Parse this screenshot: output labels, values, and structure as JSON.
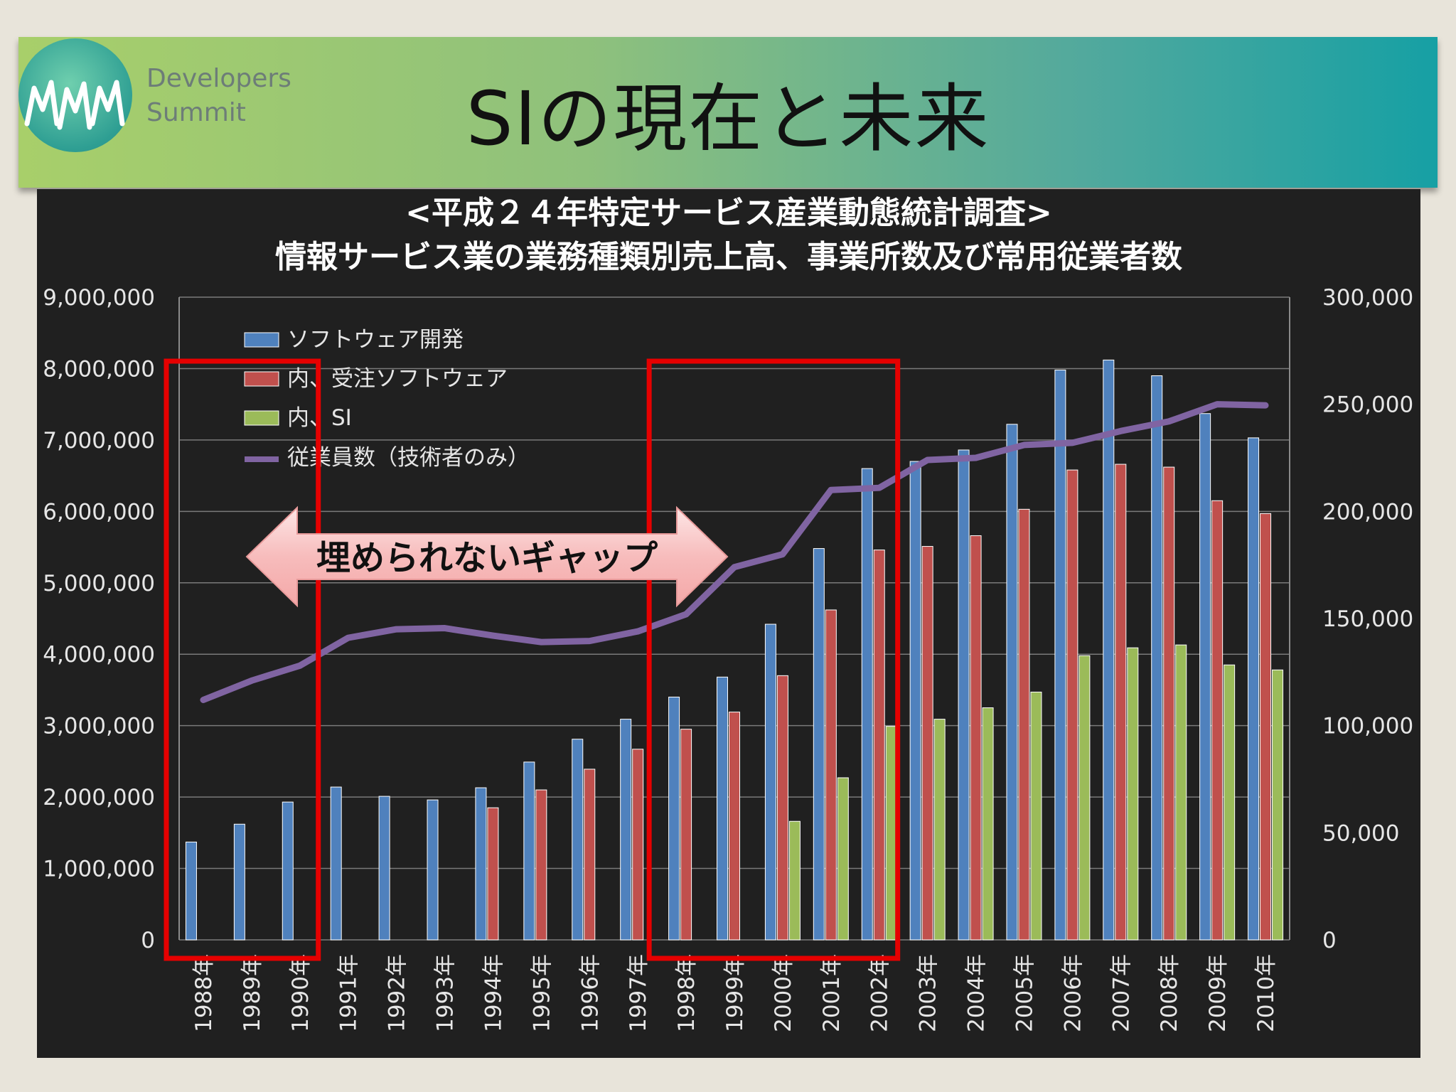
{
  "header": {
    "brand_line1": "Developers",
    "brand_line2": "Summit",
    "title": "SIの現在と未来"
  },
  "chart_data": {
    "type": "bar",
    "title": "<平成２４年特定サービス産業動態統計調査>",
    "subtitle": "情報サービス業の業務種類別売上高、事業所数及び常用従業者数",
    "categories": [
      "1988年",
      "1989年",
      "1990年",
      "1991年",
      "1992年",
      "1993年",
      "1994年",
      "1995年",
      "1996年",
      "1997年",
      "1998年",
      "1999年",
      "2000年",
      "2001年",
      "2002年",
      "2003年",
      "2004年",
      "2005年",
      "2006年",
      "2007年",
      "2008年",
      "2009年",
      "2010年"
    ],
    "y_left": {
      "min": 0,
      "max": 9000000,
      "step": 1000000,
      "ticks": [
        "0",
        "1,000,000",
        "2,000,000",
        "3,000,000",
        "4,000,000",
        "5,000,000",
        "6,000,000",
        "7,000,000",
        "8,000,000",
        "9,000,000"
      ]
    },
    "y_right": {
      "min": 0,
      "max": 300000,
      "step": 50000,
      "ticks": [
        "0",
        "50,000",
        "100,000",
        "150,000",
        "200,000",
        "250,000",
        "300,000"
      ]
    },
    "grid": true,
    "legend_position": "top-left",
    "series": [
      {
        "name": "ソフトウェア開発",
        "type": "bar",
        "axis": "left",
        "color": "#4f81bd",
        "values": [
          1370000,
          1620000,
          1930000,
          2140000,
          2010000,
          1960000,
          2130000,
          2490000,
          2810000,
          3090000,
          3400000,
          3680000,
          4420000,
          5480000,
          6600000,
          6700000,
          6860000,
          7220000,
          7980000,
          8120000,
          7900000,
          7370000,
          7030000
        ]
      },
      {
        "name": "内、受注ソフトウェア",
        "type": "bar",
        "axis": "left",
        "color": "#c0504d",
        "values": [
          null,
          null,
          null,
          null,
          null,
          null,
          1850000,
          2100000,
          2390000,
          2670000,
          2950000,
          3190000,
          3700000,
          4620000,
          5460000,
          5510000,
          5660000,
          6030000,
          6580000,
          6660000,
          6620000,
          6150000,
          5970000
        ]
      },
      {
        "name": "内、SI",
        "type": "bar",
        "axis": "left",
        "color": "#9bbb59",
        "values": [
          null,
          null,
          null,
          null,
          null,
          null,
          null,
          null,
          null,
          null,
          null,
          null,
          1660000,
          2270000,
          2990000,
          3090000,
          3250000,
          3470000,
          3980000,
          4090000,
          4130000,
          3850000,
          3780000
        ]
      },
      {
        "name": "従業員数（技術者のみ）",
        "type": "line",
        "axis": "right",
        "color": "#8064a2",
        "values": [
          112000,
          121000,
          128000,
          141000,
          145000,
          145500,
          142000,
          139000,
          139500,
          144000,
          152000,
          174000,
          180000,
          210000,
          211000,
          224000,
          225000,
          231000,
          232000,
          237500,
          242000,
          250000,
          249500
        ]
      }
    ],
    "annotation": {
      "text": "埋められないギャップ"
    },
    "highlight_ranges": [
      [
        "1988年",
        "1990年"
      ],
      [
        "1998年",
        "2002年"
      ]
    ]
  }
}
